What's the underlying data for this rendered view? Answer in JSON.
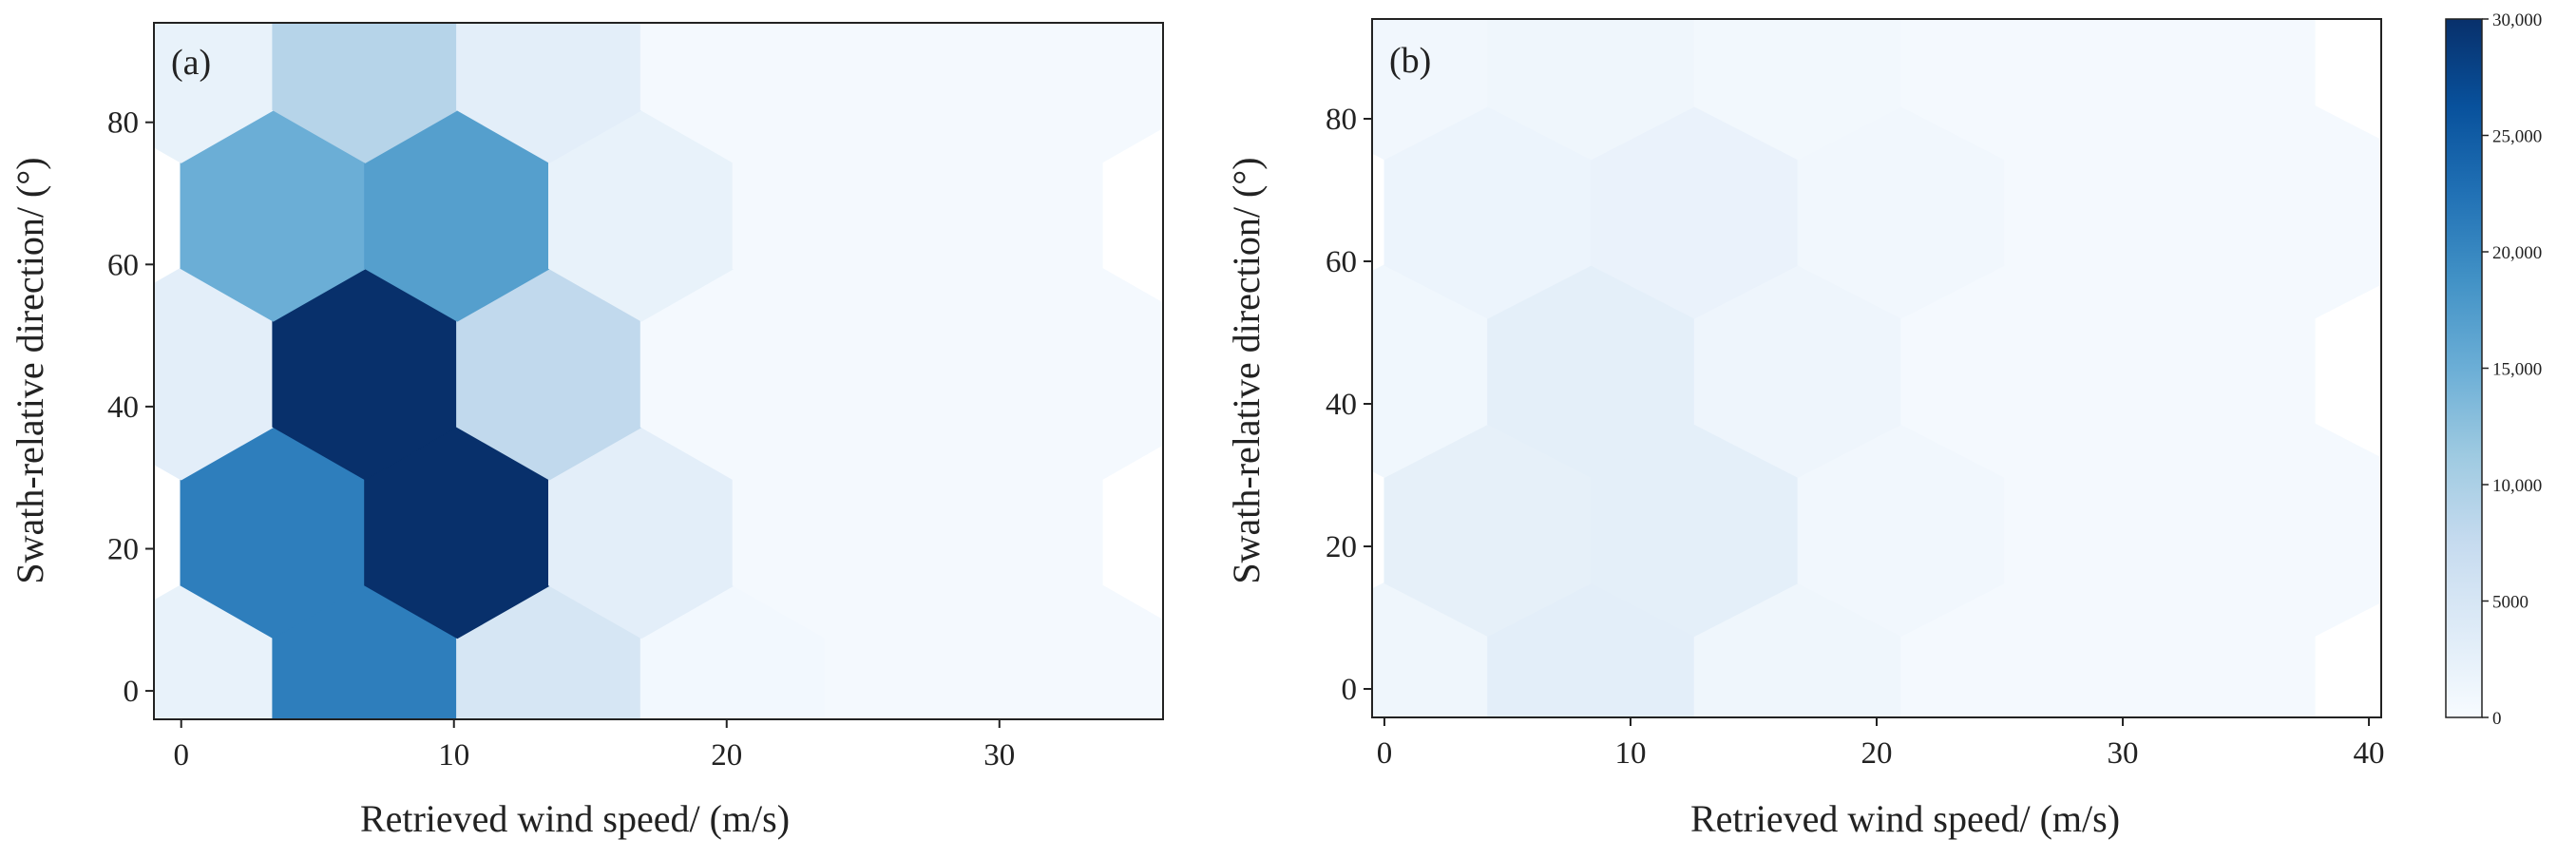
{
  "chart_data": [
    {
      "type": "heatmap",
      "variant": "hexbin",
      "panel_label": "(a)",
      "xlabel": "Retrieved wind speed/ (m/s)",
      "ylabel": "Swath-relative direction/ (°)",
      "xlim": [
        -1,
        36
      ],
      "ylim": [
        -4,
        94
      ],
      "xticks": [
        0,
        10,
        20,
        30
      ],
      "yticks": [
        0,
        20,
        40,
        60,
        80
      ],
      "hex_size_x": 3.4,
      "hex_size_y": 14.9,
      "bins": [
        {
          "x": 0.0,
          "y": 0.0,
          "count": 2200
        },
        {
          "x": 6.75,
          "y": 0.0,
          "count": 21000
        },
        {
          "x": 13.5,
          "y": 0.0,
          "count": 5000
        },
        {
          "x": 20.25,
          "y": 0.0,
          "count": 700
        },
        {
          "x": 27.0,
          "y": 0.0,
          "count": 500
        },
        {
          "x": 33.75,
          "y": 0.0,
          "count": 500
        },
        {
          "x": 3.375,
          "y": 22.3,
          "count": 21000
        },
        {
          "x": 10.125,
          "y": 22.3,
          "count": 30000
        },
        {
          "x": 16.875,
          "y": 22.3,
          "count": 3000
        },
        {
          "x": 23.625,
          "y": 22.3,
          "count": 500
        },
        {
          "x": 30.375,
          "y": 22.3,
          "count": 500
        },
        {
          "x": 0.0,
          "y": 44.6,
          "count": 3000
        },
        {
          "x": 6.75,
          "y": 44.6,
          "count": 30000
        },
        {
          "x": 13.5,
          "y": 44.6,
          "count": 8000
        },
        {
          "x": 20.25,
          "y": 44.6,
          "count": 500
        },
        {
          "x": 27.0,
          "y": 44.6,
          "count": 500
        },
        {
          "x": 33.75,
          "y": 44.6,
          "count": 500
        },
        {
          "x": 3.375,
          "y": 66.9,
          "count": 15000
        },
        {
          "x": 10.125,
          "y": 66.9,
          "count": 17000
        },
        {
          "x": 16.875,
          "y": 66.9,
          "count": 2200
        },
        {
          "x": 23.625,
          "y": 66.9,
          "count": 500
        },
        {
          "x": 30.375,
          "y": 66.9,
          "count": 500
        },
        {
          "x": 0.0,
          "y": 89.2,
          "count": 2200
        },
        {
          "x": 6.75,
          "y": 89.2,
          "count": 9000
        },
        {
          "x": 13.5,
          "y": 89.2,
          "count": 3000
        },
        {
          "x": 20.25,
          "y": 89.2,
          "count": 500
        },
        {
          "x": 27.0,
          "y": 89.2,
          "count": 500
        },
        {
          "x": 33.75,
          "y": 89.2,
          "count": 500
        }
      ]
    },
    {
      "type": "heatmap",
      "variant": "hexbin",
      "panel_label": "(b)",
      "xlabel": "Retrieved wind speed/ (m/s)",
      "ylabel": "Swath-relative direction/ (°)",
      "xlim": [
        -0.5,
        40.5
      ],
      "ylim": [
        -4,
        94
      ],
      "xticks": [
        0,
        10,
        20,
        30,
        40
      ],
      "yticks": [
        0,
        20,
        40,
        60,
        80
      ],
      "hex_size_x": 4.2,
      "hex_size_y": 14.9,
      "bins": [
        {
          "x": 0.0,
          "y": 0.0,
          "count": 1200
        },
        {
          "x": 8.4,
          "y": 0.0,
          "count": 3000
        },
        {
          "x": 16.8,
          "y": 0.0,
          "count": 1200
        },
        {
          "x": 25.2,
          "y": 0.0,
          "count": 500
        },
        {
          "x": 33.6,
          "y": 0.0,
          "count": 500
        },
        {
          "x": 4.2,
          "y": 22.3,
          "count": 2600
        },
        {
          "x": 12.6,
          "y": 22.3,
          "count": 2800
        },
        {
          "x": 21.0,
          "y": 22.3,
          "count": 900
        },
        {
          "x": 29.4,
          "y": 22.3,
          "count": 500
        },
        {
          "x": 37.8,
          "y": 22.3,
          "count": 500
        },
        {
          "x": 0.0,
          "y": 44.6,
          "count": 1000
        },
        {
          "x": 8.4,
          "y": 44.6,
          "count": 2800
        },
        {
          "x": 16.8,
          "y": 44.6,
          "count": 1300
        },
        {
          "x": 25.2,
          "y": 44.6,
          "count": 500
        },
        {
          "x": 33.6,
          "y": 44.6,
          "count": 500
        },
        {
          "x": 4.2,
          "y": 66.9,
          "count": 1600
        },
        {
          "x": 12.6,
          "y": 66.9,
          "count": 2000
        },
        {
          "x": 21.0,
          "y": 66.9,
          "count": 900
        },
        {
          "x": 29.4,
          "y": 66.9,
          "count": 500
        },
        {
          "x": 37.8,
          "y": 66.9,
          "count": 500
        },
        {
          "x": 0.0,
          "y": 89.2,
          "count": 900
        },
        {
          "x": 8.4,
          "y": 89.2,
          "count": 1200
        },
        {
          "x": 16.8,
          "y": 89.2,
          "count": 800
        },
        {
          "x": 25.2,
          "y": 89.2,
          "count": 500
        },
        {
          "x": 33.6,
          "y": 89.2,
          "count": 500
        }
      ]
    }
  ],
  "colorbar": {
    "min": 0,
    "max": 30000,
    "ticks": [
      0,
      5000,
      10000,
      15000,
      20000,
      25000,
      30000
    ],
    "tick_labels": [
      "0",
      "5000",
      "10,000",
      "15,000",
      "20,000",
      "25,000",
      "30,000"
    ],
    "colormap": "Blues",
    "colors": [
      "#f7fbff",
      "#deebf7",
      "#c6dbef",
      "#9ecae1",
      "#6baed6",
      "#4292c6",
      "#2171b5",
      "#08519c",
      "#08306b"
    ]
  }
}
